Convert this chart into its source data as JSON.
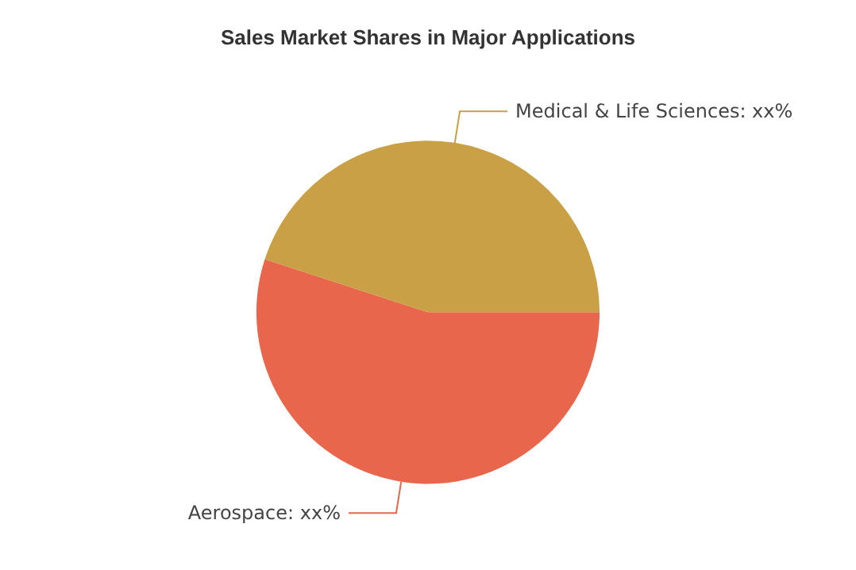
{
  "chart_data": {
    "type": "pie",
    "title": "Sales Market Shares in Major Applications",
    "categories": [
      "Aerospace",
      "Medical & Life Sciences"
    ],
    "values": [
      55,
      45
    ],
    "colors": [
      "#e8674c",
      "#c9a045"
    ],
    "value_labels": [
      "xx%",
      "xx%"
    ],
    "legend": false
  }
}
